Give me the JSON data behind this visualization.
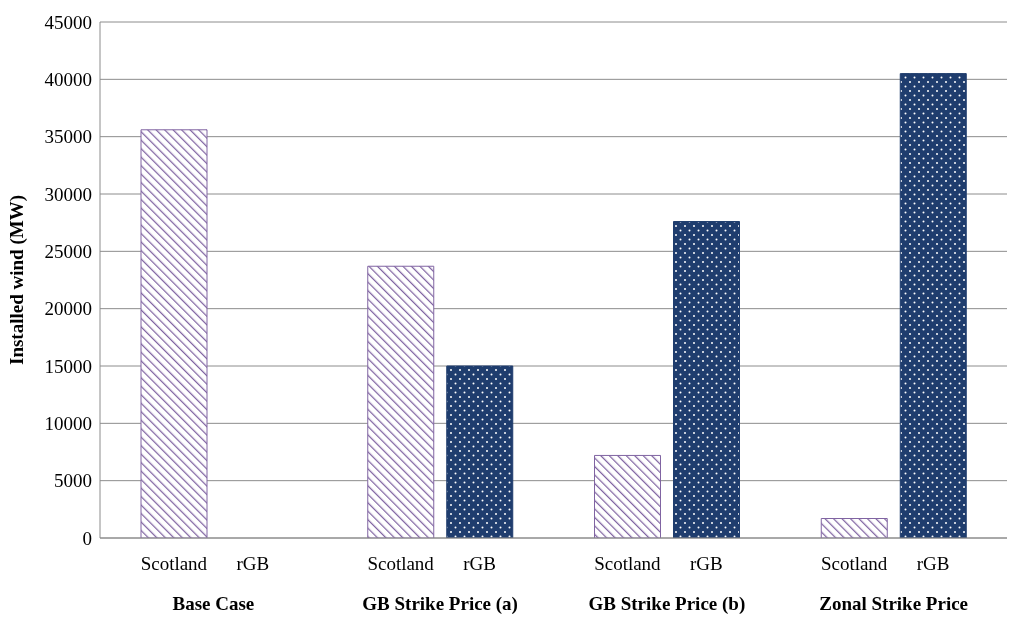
{
  "chart_data": {
    "type": "bar",
    "ylabel": "Installed wind (MW)",
    "categories": [
      "Base Case",
      "GB Strike Price (a)",
      "GB Strike Price (b)",
      "Zonal Strike Price"
    ],
    "series": [
      {
        "name": "Scotland",
        "color": "#8064a2",
        "values": [
          35600,
          23700,
          7200,
          1700
        ]
      },
      {
        "name": "rGB",
        "color": "#1f3d6e",
        "values": [
          0,
          15000,
          27600,
          40500
        ]
      }
    ],
    "ylim": [
      0,
      45000
    ],
    "yticks": [
      0,
      5000,
      10000,
      15000,
      20000,
      25000,
      30000,
      35000,
      40000,
      45000
    ],
    "grid": "y",
    "legend": false
  }
}
